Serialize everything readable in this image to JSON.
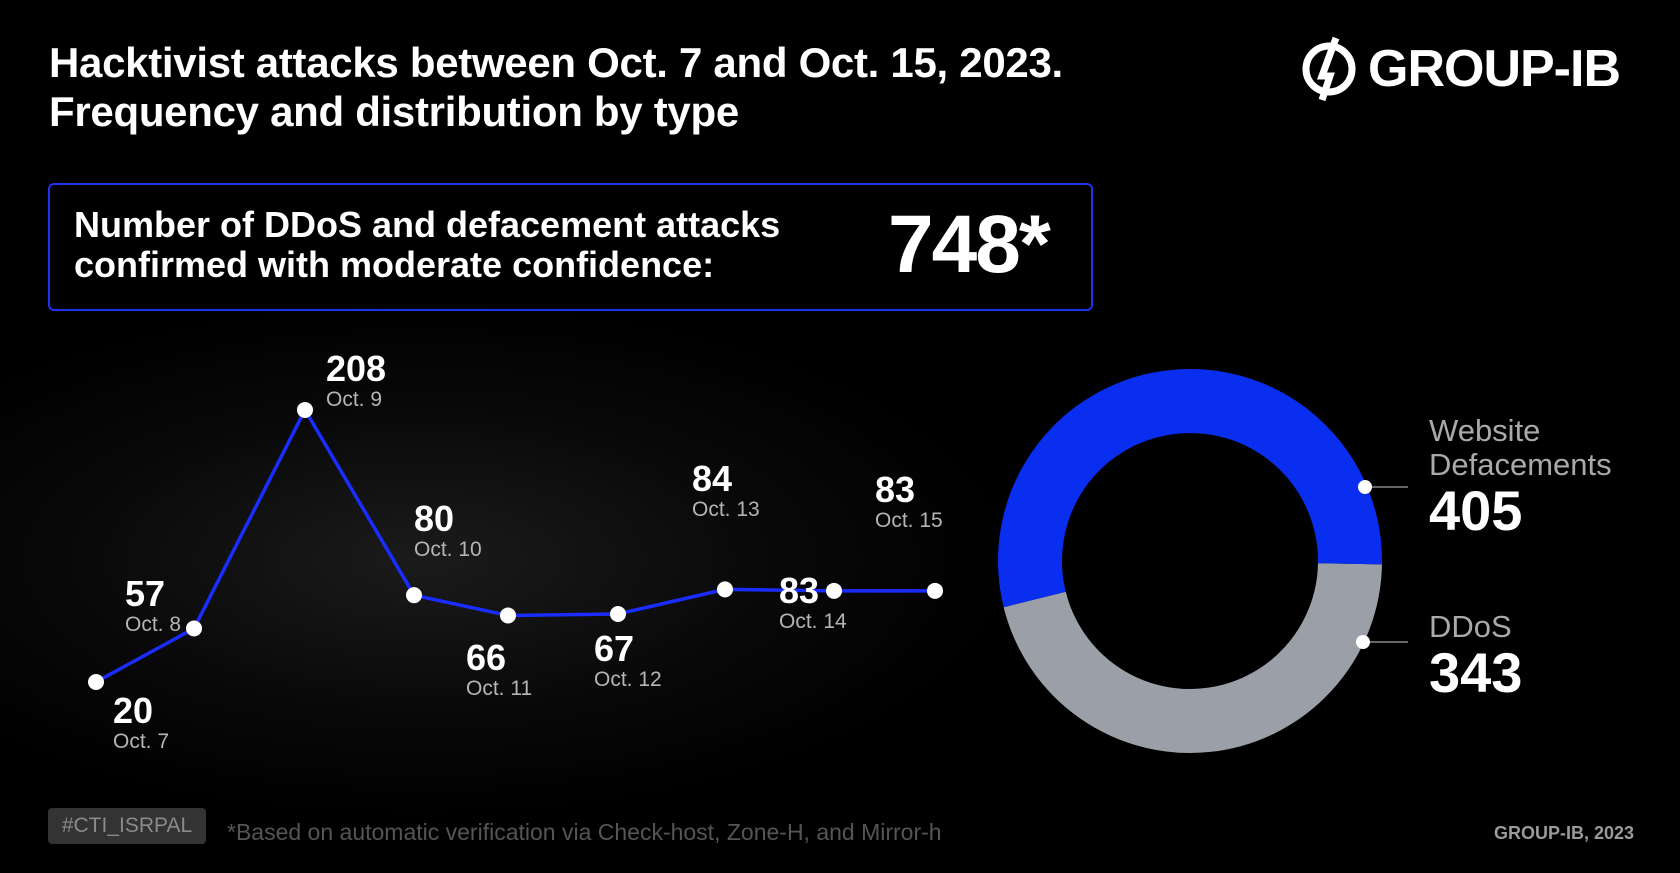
{
  "title": {
    "line1": "Hacktivist attacks between Oct. 7 and Oct. 15, 2023.",
    "line2": "Frequency and distribution by type"
  },
  "logo": {
    "text": "GROUP-IB"
  },
  "summary": {
    "line1": "Number of DDoS and defacement attacks",
    "line2": "confirmed with moderate confidence:",
    "value": "748*"
  },
  "chart_data": [
    {
      "type": "line",
      "color": "#1a2cff",
      "categories": [
        "Oct. 7",
        "Oct. 8",
        "Oct. 9",
        "Oct. 10",
        "Oct. 11",
        "Oct. 12",
        "Oct. 13",
        "Oct. 14",
        "Oct. 15"
      ],
      "values": [
        20,
        57,
        208,
        80,
        66,
        67,
        84,
        83,
        83
      ],
      "labels": [
        "20",
        "57",
        "208",
        "80",
        "66",
        "67",
        "84",
        "83",
        "83"
      ]
    },
    {
      "type": "pie",
      "style": "donut",
      "slices": [
        {
          "name": "Website Defacements",
          "value": 405,
          "label": "405",
          "color": "#0a2ef0"
        },
        {
          "name": "DDoS",
          "value": 343,
          "label": "343",
          "color": "#9ba0a8"
        }
      ],
      "legend": {
        "line1": "Website",
        "line2": "Defacements",
        "ddos": "DDoS"
      }
    }
  ],
  "footer": {
    "tag": "#CTI_ISRPAL",
    "note": "*Based on automatic verification via Check-host, Zone-H, and Mirror-h",
    "copyright": "GROUP-IB, 2023"
  }
}
